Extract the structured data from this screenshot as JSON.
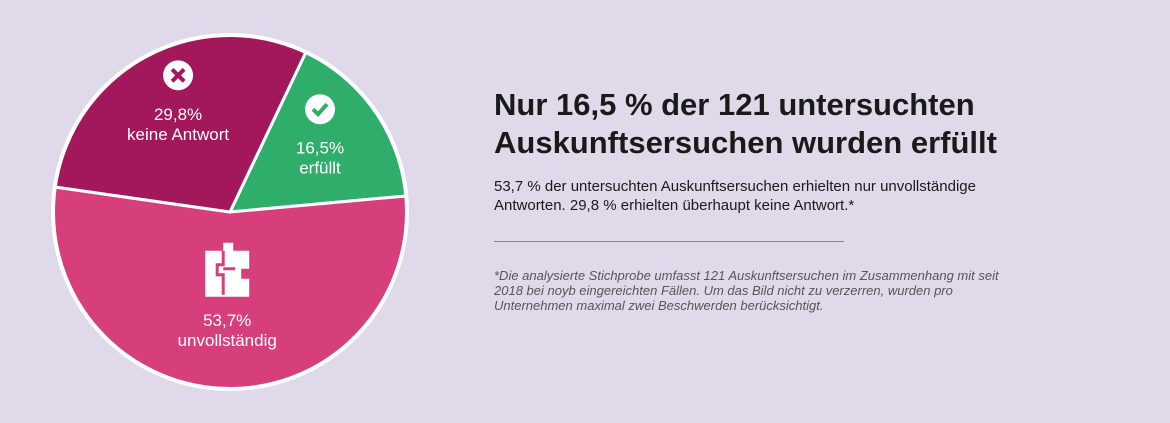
{
  "chart_data": {
    "type": "pie",
    "categories": [
      "erfüllt",
      "unvollständig",
      "keine Antwort"
    ],
    "values": [
      16.5,
      53.7,
      29.8
    ],
    "value_labels": [
      "16,5%",
      "53,7%",
      "29,8%"
    ],
    "colors": [
      "#2fae6b",
      "#d63f7b",
      "#a3185a"
    ],
    "start_angle": 25.4
  },
  "text": {
    "title": "Nur 16,5 % der 121 untersuchten Auskunftsersuchen wurden erfüllt",
    "subtitle": "53,7 % der untersuchten Auskunftsersuchen erhielten nur unvollständige Antworten. 29,8 % erhielten überhaupt keine Antwort.*",
    "footnote": "*Die analysierte Stichprobe umfasst 121 Auskunftsersuchen im Zusammenhang mit seit 2018 bei noyb eingereichten Fällen. Um das Bild nicht zu verzerren, wurden pro Unternehmen maximal zwei Beschwerden berücksichtigt."
  }
}
